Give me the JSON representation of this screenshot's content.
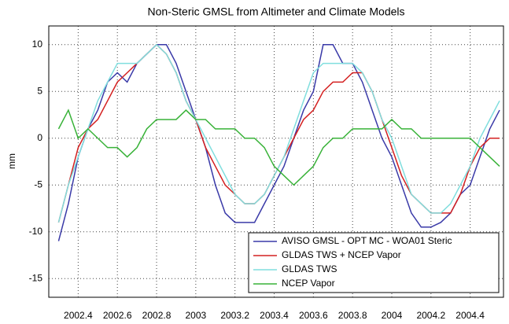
{
  "chart_data": {
    "type": "line",
    "title": "Non-Steric GMSL from Altimeter and Climate Models",
    "y_label": "mm",
    "x": [
      2002.3,
      2002.35,
      2002.4,
      2002.45,
      2002.5,
      2002.55,
      2002.6,
      2002.65,
      2002.7,
      2002.75,
      2002.8,
      2002.85,
      2002.9,
      2002.95,
      2003,
      2003.05,
      2003.1,
      2003.15,
      2003.2,
      2003.25,
      2003.3,
      2003.35,
      2003.4,
      2003.45,
      2003.5,
      2003.55,
      2003.6,
      2003.65,
      2003.7,
      2003.75,
      2003.8,
      2003.85,
      2003.9,
      2003.95,
      2004,
      2004.05,
      2004.1,
      2004.15,
      2004.2,
      2004.25,
      2004.3,
      2004.35,
      2004.4,
      2004.45,
      2004.5,
      2004.55
    ],
    "series": [
      {
        "name": "AVISO GMSL - OPT MC - WOA01 Steric",
        "color": "#3a3aa8",
        "values": [
          -11,
          -7,
          -2,
          1,
          3,
          6,
          7,
          6,
          8,
          9,
          10,
          10,
          8,
          5,
          2,
          -1,
          -5,
          -8,
          -9,
          -9,
          -9,
          -7,
          -5,
          -3,
          0,
          3,
          5,
          10,
          10,
          8,
          8,
          6,
          3,
          0,
          -2,
          -5,
          -8,
          -9.5,
          -9.5,
          -9,
          -8,
          -6,
          -5,
          -2,
          1,
          3
        ]
      },
      {
        "name": "GLDAS TWS + NCEP Vapor",
        "color": "#d42020",
        "values": [
          -9,
          -5,
          -1,
          1,
          2,
          4,
          6,
          7,
          8,
          9,
          10,
          9,
          7,
          4,
          2,
          -1,
          -3,
          -5,
          -6,
          -7,
          -7,
          -6,
          -4,
          -2,
          0,
          2,
          3,
          5,
          6,
          6,
          7,
          7,
          5,
          2,
          -1,
          -4,
          -6,
          -7,
          -8,
          -8,
          -8,
          -6,
          -3,
          -1,
          0,
          0
        ]
      },
      {
        "name": "GLDAS TWS",
        "color": "#80dede",
        "values": [
          -9,
          -5,
          -2,
          1,
          4,
          6,
          8,
          8,
          8,
          9,
          10,
          9,
          7,
          4,
          2,
          0,
          -2,
          -4,
          -6,
          -7,
          -7,
          -6,
          -4,
          -2,
          1,
          4,
          7,
          8,
          8,
          8,
          8,
          7,
          5,
          2,
          0,
          -3,
          -6,
          -7,
          -8,
          -8,
          -7,
          -5,
          -3,
          0,
          2,
          4
        ]
      },
      {
        "name": "NCEP Vapor",
        "color": "#38b238",
        "values": [
          1,
          3,
          0,
          1,
          0,
          -1,
          -1,
          -2,
          -1,
          1,
          2,
          2,
          2,
          3,
          2,
          2,
          1,
          1,
          1,
          0,
          0,
          -1,
          -3,
          -4,
          -5,
          -4,
          -3,
          -1,
          0,
          0,
          1,
          1,
          1,
          1,
          2,
          1,
          1,
          0,
          0,
          0,
          0,
          0,
          0,
          -1,
          -2,
          -3
        ]
      }
    ],
    "xlim": [
      2002.25,
      2004.57
    ],
    "xticks": [
      2002.4,
      2002.6,
      2002.8,
      2003,
      2003.2,
      2003.4,
      2003.6,
      2003.8,
      2004,
      2004.2,
      2004.4
    ],
    "ylim": [
      -17,
      12
    ],
    "yticks": [
      -15,
      -10,
      -5,
      0,
      5,
      10
    ],
    "grid": true,
    "legend": "lower right"
  }
}
